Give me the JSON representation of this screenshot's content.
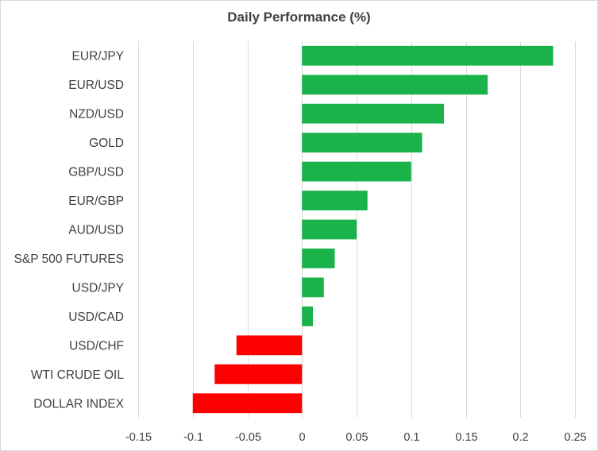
{
  "chart_data": {
    "type": "bar",
    "orientation": "horizontal",
    "title": "Daily Performance (%)",
    "xlabel": "",
    "ylabel": "",
    "categories": [
      "EUR/JPY",
      "EUR/USD",
      "NZD/USD",
      "GOLD",
      "GBP/USD",
      "EUR/GBP",
      "AUD/USD",
      "S&P 500 FUTURES",
      "USD/JPY",
      "USD/CAD",
      "USD/CHF",
      "WTI CRUDE OIL",
      "DOLLAR INDEX"
    ],
    "values": [
      0.23,
      0.17,
      0.13,
      0.11,
      0.1,
      0.06,
      0.05,
      0.03,
      0.02,
      0.01,
      -0.06,
      -0.08,
      -0.1
    ],
    "xlim": [
      -0.15,
      0.25
    ],
    "xticks": [
      -0.15,
      -0.1,
      -0.05,
      0,
      0.05,
      0.1,
      0.15,
      0.2,
      0.25
    ],
    "xtick_labels": [
      "-0.15",
      "-0.1",
      "-0.05",
      "0",
      "0.05",
      "0.1",
      "0.15",
      "0.2",
      "0.25"
    ],
    "grid": "vertical",
    "legend": "none",
    "colors": {
      "positive": "#1ab34a",
      "negative": "#ff0000",
      "grid": "#d9d9d9",
      "text": "#404040"
    }
  }
}
